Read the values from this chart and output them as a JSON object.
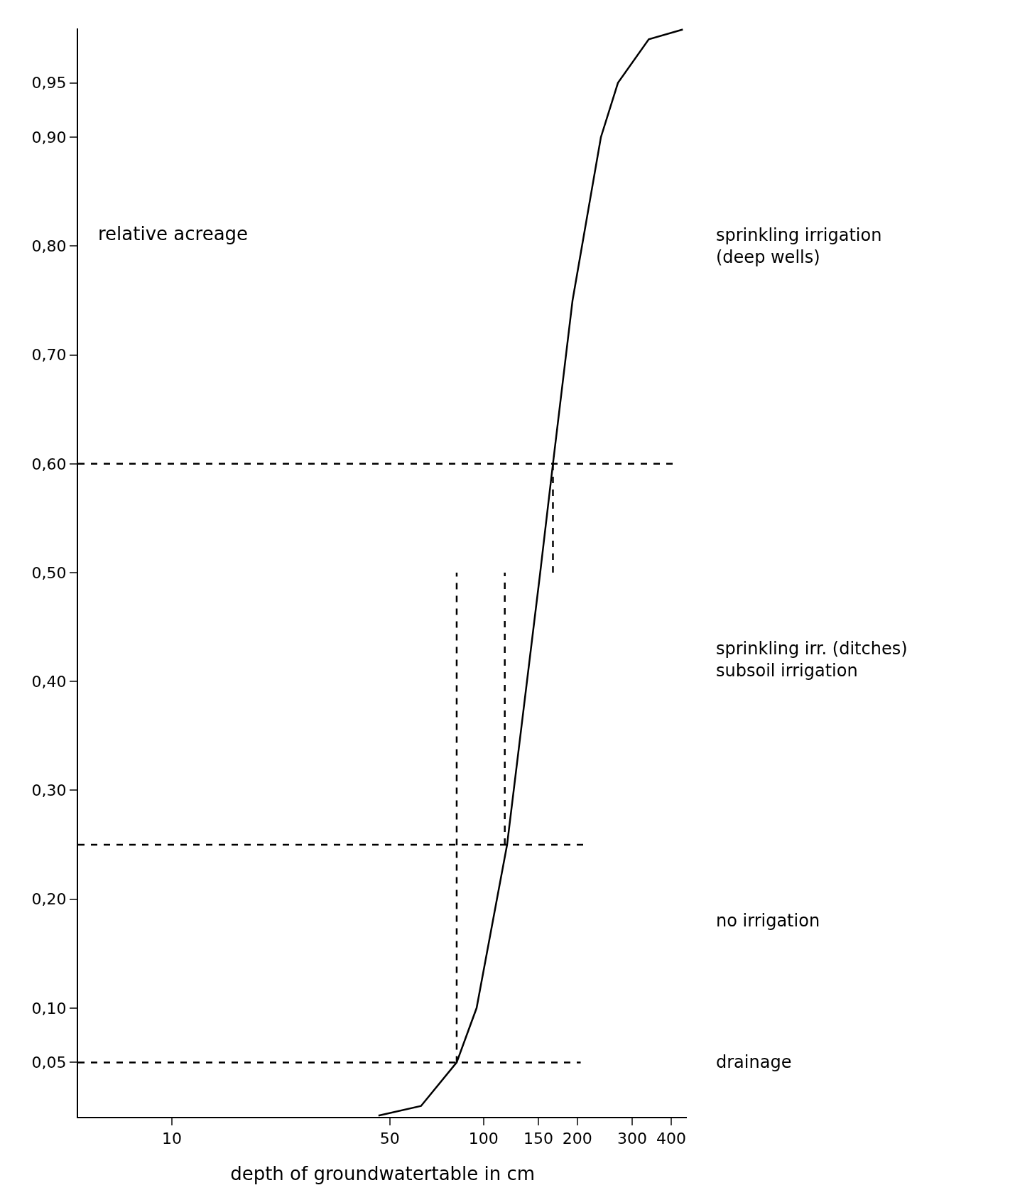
{
  "chart_data": {
    "type": "line",
    "xlabel": "depth of groundwatertable in cm",
    "ylabel": "relative acreage",
    "log": "x",
    "grid": false,
    "xlim": [
      5,
      450
    ],
    "xticks": [
      10,
      50,
      100,
      150,
      200,
      300,
      400
    ],
    "ylim": [
      0,
      1
    ],
    "yticks": [
      {
        "value": 0.05,
        "label": "0,05"
      },
      {
        "value": 0.1,
        "label": "0,10"
      },
      {
        "value": 0.2,
        "label": "0,20"
      },
      {
        "value": 0.3,
        "label": "0,30"
      },
      {
        "value": 0.4,
        "label": "0,40"
      },
      {
        "value": 0.5,
        "label": "0,50"
      },
      {
        "value": 0.6,
        "label": "0,60"
      },
      {
        "value": 0.7,
        "label": "0,70"
      },
      {
        "value": 0.8,
        "label": "0,80"
      },
      {
        "value": 0.9,
        "label": "0,90"
      },
      {
        "value": 0.95,
        "label": "0,95"
      }
    ],
    "series": [
      {
        "color": "#000000",
        "line_style": "solid",
        "x": [
          46,
          63,
          82,
          95,
          119,
          152,
          167,
          193,
          238,
          270,
          339,
          436
        ],
        "values": [
          0.0012,
          0.01,
          0.05,
          0.1,
          0.25,
          0.5,
          0.6,
          0.75,
          0.9,
          0.95,
          0.99,
          0.999
        ]
      },
      {
        "type": "line",
        "color": "#000000",
        "line_style": "dashed",
        "x": [
          5,
          420
        ],
        "values": [
          0.6,
          0.6
        ]
      },
      {
        "type": "line",
        "color": "#000000",
        "line_style": "dashed",
        "x": [
          5,
          215
        ],
        "values": [
          0.25,
          0.25
        ]
      },
      {
        "type": "line",
        "color": "#000000",
        "line_style": "dashed",
        "x": [
          5,
          205
        ],
        "values": [
          0.05,
          0.05
        ]
      },
      {
        "type": "line",
        "color": "#000000",
        "line_style": "dashed",
        "x": [
          82,
          82
        ],
        "values": [
          0.05,
          0.5
        ]
      },
      {
        "type": "line",
        "color": "#000000",
        "line_style": "dashed",
        "x": [
          117,
          117
        ],
        "values": [
          0.25,
          0.5
        ]
      },
      {
        "type": "line",
        "color": "#000000",
        "line_style": "dashed",
        "x": [
          167,
          167
        ],
        "values": [
          0.5,
          0.6
        ]
      }
    ],
    "annotations": [
      "sprinkling irrigation\n(deep wells)",
      "sprinkling irr. (ditches)\nsubsoil irrigation",
      "no irrigation",
      "drainage"
    ]
  }
}
